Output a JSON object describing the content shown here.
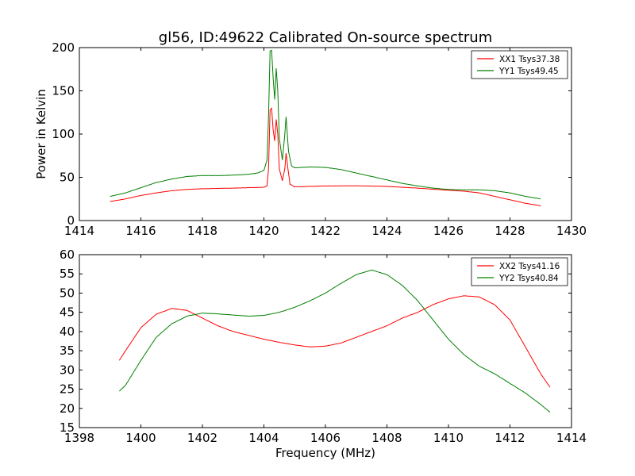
{
  "chart_data": [
    {
      "type": "line",
      "title": "gl56, ID:49622 Calibrated On-source spectrum",
      "xlabel": "",
      "ylabel": "Power in Kelvin",
      "xlim": [
        1414,
        1430
      ],
      "ylim": [
        0,
        200
      ],
      "xticks": [
        1414,
        1416,
        1418,
        1420,
        1422,
        1424,
        1426,
        1428,
        1430
      ],
      "yticks": [
        0,
        50,
        100,
        150,
        200
      ],
      "grid": false,
      "legend_position": "top-right",
      "series": [
        {
          "name": "XX1 Tsys37.38",
          "color": "#ff0000",
          "points": [
            [
              1415.0,
              22
            ],
            [
              1415.5,
              25
            ],
            [
              1416.0,
              29
            ],
            [
              1416.5,
              32
            ],
            [
              1417.0,
              34.5
            ],
            [
              1417.5,
              36
            ],
            [
              1418.0,
              36.8
            ],
            [
              1418.5,
              37.2
            ],
            [
              1419.0,
              37.5
            ],
            [
              1419.5,
              38
            ],
            [
              1420.0,
              38.5
            ],
            [
              1420.1,
              40
            ],
            [
              1420.15,
              60
            ],
            [
              1420.2,
              128
            ],
            [
              1420.25,
              130
            ],
            [
              1420.3,
              105
            ],
            [
              1420.35,
              92
            ],
            [
              1420.4,
              117
            ],
            [
              1420.45,
              100
            ],
            [
              1420.5,
              60
            ],
            [
              1420.6,
              46
            ],
            [
              1420.68,
              60
            ],
            [
              1420.72,
              78
            ],
            [
              1420.78,
              60
            ],
            [
              1420.85,
              42
            ],
            [
              1421.0,
              39
            ],
            [
              1421.5,
              39.5
            ],
            [
              1422.0,
              40
            ],
            [
              1423.0,
              40.2
            ],
            [
              1424.0,
              39.5
            ],
            [
              1425.0,
              37.5
            ],
            [
              1426.0,
              35
            ],
            [
              1426.5,
              34
            ],
            [
              1427.0,
              32
            ],
            [
              1427.5,
              28
            ],
            [
              1428.0,
              24
            ],
            [
              1428.5,
              20
            ],
            [
              1429.0,
              17
            ]
          ]
        },
        {
          "name": "YY1 Tsys49.45",
          "color": "#008000",
          "points": [
            [
              1415.0,
              28
            ],
            [
              1415.5,
              32
            ],
            [
              1416.0,
              38
            ],
            [
              1416.5,
              44
            ],
            [
              1417.0,
              48
            ],
            [
              1417.5,
              51
            ],
            [
              1418.0,
              52
            ],
            [
              1418.5,
              52
            ],
            [
              1419.0,
              52.5
            ],
            [
              1419.5,
              53.5
            ],
            [
              1419.8,
              55
            ],
            [
              1420.0,
              58
            ],
            [
              1420.1,
              70
            ],
            [
              1420.15,
              120
            ],
            [
              1420.2,
              196
            ],
            [
              1420.25,
              197
            ],
            [
              1420.3,
              165
            ],
            [
              1420.35,
              140
            ],
            [
              1420.4,
              176
            ],
            [
              1420.45,
              150
            ],
            [
              1420.5,
              95
            ],
            [
              1420.6,
              70
            ],
            [
              1420.68,
              100
            ],
            [
              1420.72,
              120
            ],
            [
              1420.8,
              80
            ],
            [
              1420.9,
              63
            ],
            [
              1421.0,
              61
            ],
            [
              1421.5,
              62
            ],
            [
              1422.0,
              61.5
            ],
            [
              1422.5,
              59
            ],
            [
              1423.0,
              55
            ],
            [
              1423.5,
              51
            ],
            [
              1424.0,
              47
            ],
            [
              1424.5,
              43
            ],
            [
              1425.0,
              40
            ],
            [
              1425.5,
              37.5
            ],
            [
              1426.0,
              36
            ],
            [
              1426.5,
              35.5
            ],
            [
              1427.0,
              35.5
            ],
            [
              1427.5,
              34.5
            ],
            [
              1428.0,
              32
            ],
            [
              1428.5,
              28
            ],
            [
              1429.0,
              25
            ]
          ]
        }
      ]
    },
    {
      "type": "line",
      "title": "",
      "xlabel": "Frequency (MHz)",
      "ylabel": "",
      "xlim": [
        1398,
        1414
      ],
      "ylim": [
        15,
        60
      ],
      "xticks": [
        1398,
        1400,
        1402,
        1404,
        1406,
        1408,
        1410,
        1412,
        1414
      ],
      "yticks": [
        15,
        20,
        25,
        30,
        35,
        40,
        45,
        50,
        55,
        60
      ],
      "grid": false,
      "legend_position": "top-right",
      "series": [
        {
          "name": "XX2 Tsys41.16",
          "color": "#ff0000",
          "points": [
            [
              1399.3,
              32.5
            ],
            [
              1399.5,
              35
            ],
            [
              1400.0,
              41
            ],
            [
              1400.5,
              44.5
            ],
            [
              1401.0,
              46
            ],
            [
              1401.5,
              45.5
            ],
            [
              1402.0,
              43.5
            ],
            [
              1402.5,
              41.5
            ],
            [
              1403.0,
              40
            ],
            [
              1403.5,
              39
            ],
            [
              1404.0,
              38
            ],
            [
              1404.5,
              37.2
            ],
            [
              1405.0,
              36.5
            ],
            [
              1405.5,
              36
            ],
            [
              1406.0,
              36.2
            ],
            [
              1406.5,
              37
            ],
            [
              1407.0,
              38.5
            ],
            [
              1407.5,
              40
            ],
            [
              1408.0,
              41.5
            ],
            [
              1408.5,
              43.5
            ],
            [
              1409.0,
              45
            ],
            [
              1409.5,
              47
            ],
            [
              1410.0,
              48.5
            ],
            [
              1410.5,
              49.3
            ],
            [
              1411.0,
              49
            ],
            [
              1411.5,
              47
            ],
            [
              1412.0,
              43
            ],
            [
              1412.5,
              36
            ],
            [
              1413.0,
              29
            ],
            [
              1413.3,
              25.5
            ]
          ]
        },
        {
          "name": "YY2 Tsys40.84",
          "color": "#008000",
          "points": [
            [
              1399.3,
              24.5
            ],
            [
              1399.5,
              26
            ],
            [
              1400.0,
              32.5
            ],
            [
              1400.5,
              38.5
            ],
            [
              1401.0,
              42
            ],
            [
              1401.5,
              44
            ],
            [
              1402.0,
              44.8
            ],
            [
              1402.5,
              44.6
            ],
            [
              1403.0,
              44.3
            ],
            [
              1403.5,
              44
            ],
            [
              1404.0,
              44.2
            ],
            [
              1404.5,
              45
            ],
            [
              1405.0,
              46.3
            ],
            [
              1405.5,
              48
            ],
            [
              1406.0,
              50
            ],
            [
              1406.5,
              52.5
            ],
            [
              1407.0,
              54.8
            ],
            [
              1407.5,
              56
            ],
            [
              1408.0,
              54.8
            ],
            [
              1408.5,
              52
            ],
            [
              1409.0,
              48
            ],
            [
              1409.5,
              43
            ],
            [
              1410.0,
              38
            ],
            [
              1410.5,
              34
            ],
            [
              1411.0,
              31
            ],
            [
              1411.5,
              29
            ],
            [
              1412.0,
              26.5
            ],
            [
              1412.5,
              24
            ],
            [
              1413.0,
              21
            ],
            [
              1413.3,
              19
            ]
          ]
        }
      ]
    }
  ]
}
